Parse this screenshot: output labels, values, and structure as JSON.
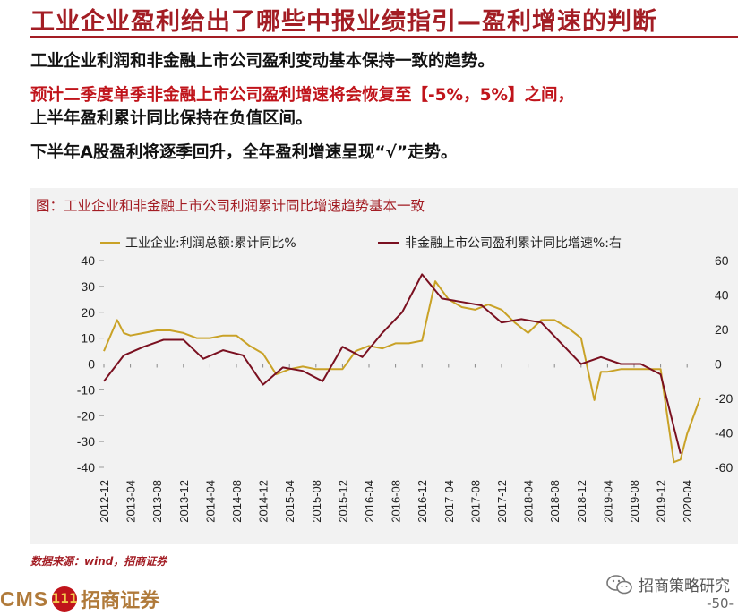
{
  "page": {
    "title": "工业企业盈利给出了哪些中报业绩指引—盈利增速的判断",
    "bullet1": "工业企业利润和非金融上市公司盈利变动基本保持一致的趋势。",
    "bullet2_red": "预计二季度单季非金融上市公司盈利增速将会恢复至【-5%，5%】之间，",
    "bullet2_black": "上半年盈利累计同比保持在负值区间。",
    "bullet3": "下半年A股盈利将逐季回升，全年盈利增速呈现“√”走势。",
    "source": "数据来源：wind，招商证券",
    "logo_cms": "CMS",
    "logo_coin": "111",
    "logo_cn": "招商证券",
    "wechat_label": "招商策略研究",
    "page_number": "-50-"
  },
  "colors": {
    "accent_red": "#a31d24",
    "industrial_line": "#c9a227",
    "nonfin_line": "#7a1020"
  },
  "chart_data": {
    "type": "line",
    "title": "图：工业企业和非金融上市公司利润累计同比增速趋势基本一致",
    "categories": [
      "2012-12",
      "2013-04",
      "2013-08",
      "2013-12",
      "2014-04",
      "2014-08",
      "2014-12",
      "2015-04",
      "2015-08",
      "2015-12",
      "2016-04",
      "2016-08",
      "2016-12",
      "2017-04",
      "2017-08",
      "2017-12",
      "2018-04",
      "2018-08",
      "2018-12",
      "2019-04",
      "2019-08",
      "2019-12",
      "2020-04"
    ],
    "left_axis": {
      "ylim": [
        -40,
        40
      ],
      "ticks": [
        40,
        30,
        20,
        10,
        0,
        -10,
        -20,
        -30,
        -40
      ]
    },
    "right_axis": {
      "ylim": [
        -60,
        60
      ],
      "ticks": [
        60,
        40,
        20,
        0,
        -20,
        -40,
        -60
      ]
    },
    "legend": "top",
    "series": [
      {
        "name": "工业企业:利润总额:累计同比%",
        "axis": "left",
        "x": [
          "2012-12",
          "2013-02",
          "2013-03",
          "2013-04",
          "2013-06",
          "2013-08",
          "2013-10",
          "2013-12",
          "2014-02",
          "2014-04",
          "2014-06",
          "2014-08",
          "2014-10",
          "2014-12",
          "2015-02",
          "2015-04",
          "2015-06",
          "2015-08",
          "2015-10",
          "2015-12",
          "2016-02",
          "2016-04",
          "2016-06",
          "2016-08",
          "2016-10",
          "2016-12",
          "2017-02",
          "2017-04",
          "2017-06",
          "2017-08",
          "2017-10",
          "2017-12",
          "2018-02",
          "2018-04",
          "2018-06",
          "2018-08",
          "2018-10",
          "2018-12",
          "2019-02",
          "2019-03",
          "2019-04",
          "2019-06",
          "2019-08",
          "2019-10",
          "2019-12",
          "2020-02",
          "2020-03",
          "2020-04",
          "2020-06"
        ],
        "values": [
          5,
          17,
          12,
          11,
          12,
          13,
          13,
          12,
          10,
          10,
          11,
          11,
          7,
          4,
          -4,
          -2,
          -1,
          -2,
          -2,
          -2,
          5,
          7,
          6,
          8,
          8,
          9,
          32,
          25,
          22,
          21,
          23,
          21,
          16,
          12,
          17,
          17,
          14,
          10,
          -14,
          -3,
          -3,
          -2,
          -2,
          -2,
          -2,
          -38,
          -37,
          -27,
          -13
        ]
      },
      {
        "name": "非金融上市公司盈利累计同比增速%:右",
        "axis": "right",
        "x": [
          "2012-12",
          "2013-03",
          "2013-06",
          "2013-09",
          "2013-12",
          "2014-03",
          "2014-06",
          "2014-09",
          "2014-12",
          "2015-03",
          "2015-06",
          "2015-09",
          "2015-12",
          "2016-03",
          "2016-06",
          "2016-09",
          "2016-12",
          "2017-03",
          "2017-06",
          "2017-09",
          "2017-12",
          "2018-03",
          "2018-06",
          "2018-09",
          "2018-12",
          "2019-03",
          "2019-06",
          "2019-09",
          "2019-12",
          "2020-03"
        ],
        "values": [
          -10,
          5,
          10,
          14,
          14,
          3,
          8,
          5,
          -12,
          -2,
          -4,
          -10,
          10,
          4,
          18,
          30,
          52,
          38,
          36,
          34,
          24,
          26,
          24,
          12,
          0,
          4,
          0,
          0,
          -6,
          -52
        ]
      }
    ]
  }
}
